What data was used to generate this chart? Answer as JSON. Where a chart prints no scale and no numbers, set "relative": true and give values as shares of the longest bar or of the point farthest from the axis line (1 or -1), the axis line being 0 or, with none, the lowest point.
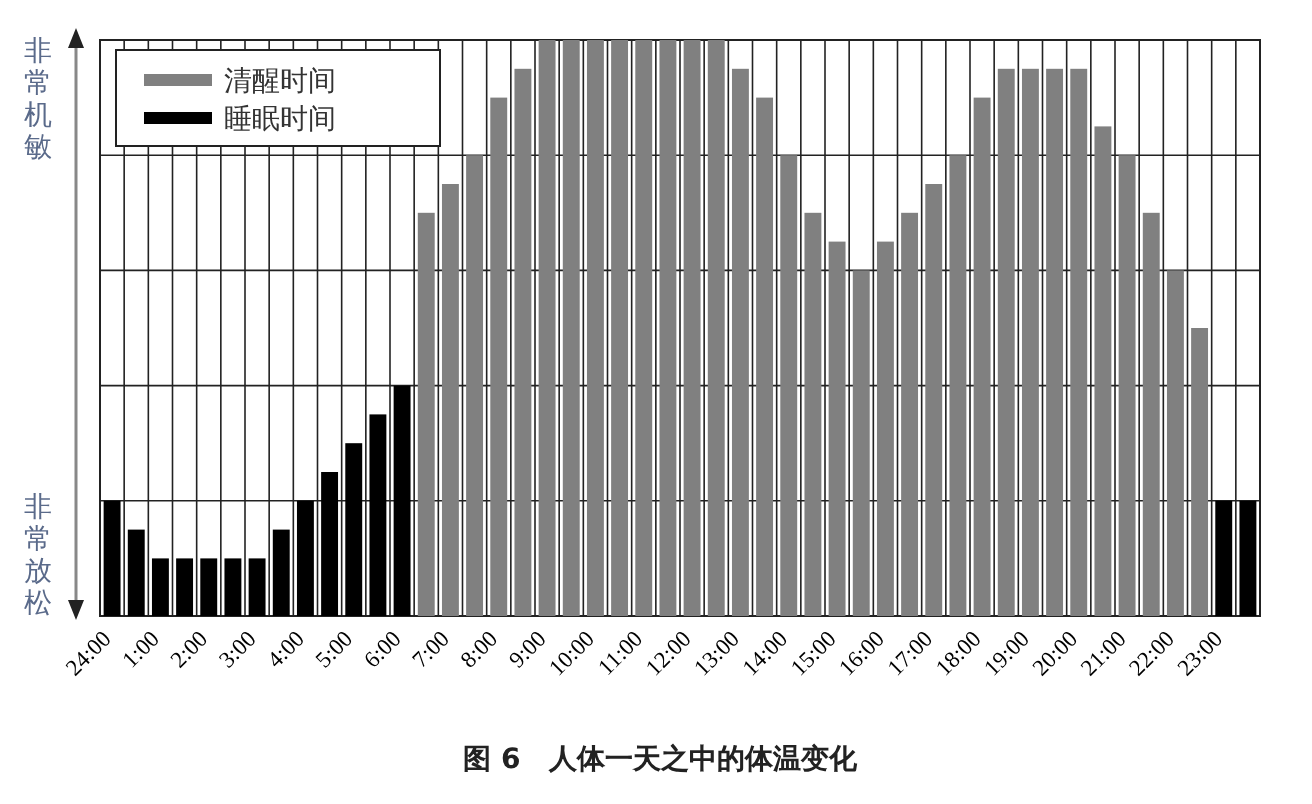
{
  "chart_data": {
    "type": "bar",
    "relative": true,
    "title": "图 6　人体一天之中的体温变化",
    "annotations": [
      "非常机敏",
      "非常放松"
    ],
    "categories": [
      "24:00",
      null,
      "1:00",
      null,
      "2:00",
      null,
      "3:00",
      null,
      "4:00",
      null,
      "5:00",
      null,
      "6:00",
      null,
      "7:00",
      null,
      "8:00",
      null,
      "9:00",
      null,
      "10:00",
      null,
      "11:00",
      null,
      "12:00",
      null,
      "13:00",
      null,
      "14:00",
      null,
      "15:00",
      null,
      "16:00",
      null,
      "17:00",
      null,
      "18:00",
      null,
      "19:00",
      null,
      "20:00",
      null,
      "21:00",
      null,
      "22:00",
      null,
      "23:00",
      null
    ],
    "series": [
      {
        "name": "清醒时间",
        "color": "#808080",
        "values": [
          null,
          null,
          null,
          null,
          null,
          null,
          null,
          null,
          null,
          null,
          null,
          null,
          null,
          0.7,
          0.75,
          0.8,
          0.9,
          0.95,
          1,
          1,
          1,
          1,
          1,
          1,
          1,
          1,
          0.95,
          0.9,
          0.8,
          0.7,
          0.65,
          0.6,
          0.65,
          0.7,
          0.75,
          0.8,
          0.9,
          0.95,
          0.95,
          0.95,
          0.95,
          0.85,
          0.8,
          0.7,
          0.6,
          0.5,
          null,
          null
        ]
      },
      {
        "name": "睡眠时间",
        "color": "#000000",
        "values": [
          0.2,
          0.15,
          0.1,
          0.1,
          0.1,
          0.1,
          0.1,
          0.15,
          0.2,
          0.25,
          0.3,
          0.35,
          0.4,
          null,
          null,
          null,
          null,
          null,
          null,
          null,
          null,
          null,
          null,
          null,
          null,
          null,
          null,
          null,
          null,
          null,
          null,
          null,
          null,
          null,
          null,
          null,
          null,
          null,
          null,
          null,
          null,
          null,
          null,
          null,
          null,
          null,
          0.2,
          0.2
        ]
      }
    ],
    "grid": true,
    "legend": "top left"
  }
}
